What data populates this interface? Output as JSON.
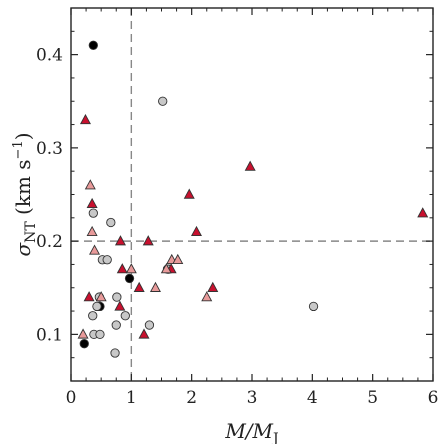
{
  "chart_data": {
    "type": "scatter",
    "xlabel": "M/MJ",
    "ylabel": "σNT (km s−1)",
    "xlim": [
      0,
      6
    ],
    "ylim": [
      0.05,
      0.45
    ],
    "xticks": [
      "0",
      "1",
      "2",
      "3",
      "4",
      "5",
      "6"
    ],
    "yticks": [
      "0.1",
      "0.2",
      "0.3",
      "0.4"
    ],
    "reference_lines": {
      "x": 1,
      "y": 0.2,
      "style": "dashed",
      "color": "#888888"
    },
    "series": [
      {
        "marker": "circle",
        "color": "#000000",
        "points": [
          [
            0.37,
            0.41
          ],
          [
            0.97,
            0.16
          ],
          [
            0.48,
            0.13
          ],
          [
            1.62,
            0.17
          ],
          [
            0.22,
            0.09
          ]
        ]
      },
      {
        "marker": "circle",
        "color": "#c8c8c8",
        "points": [
          [
            1.52,
            0.35
          ],
          [
            0.37,
            0.23
          ],
          [
            0.66,
            0.22
          ],
          [
            0.52,
            0.18
          ],
          [
            0.6,
            0.18
          ],
          [
            0.47,
            0.14
          ],
          [
            0.76,
            0.14
          ],
          [
            0.43,
            0.13
          ],
          [
            0.36,
            0.12
          ],
          [
            0.9,
            0.12
          ],
          [
            0.75,
            0.11
          ],
          [
            1.3,
            0.11
          ],
          [
            0.38,
            0.1
          ],
          [
            0.48,
            0.1
          ],
          [
            0.73,
            0.08
          ],
          [
            4.02,
            0.13
          ],
          [
            1.6,
            0.17
          ]
        ]
      },
      {
        "marker": "triangle",
        "color": "#c8102e",
        "points": [
          [
            0.24,
            0.33
          ],
          [
            0.35,
            0.24
          ],
          [
            0.82,
            0.2
          ],
          [
            1.28,
            0.2
          ],
          [
            1.96,
            0.25
          ],
          [
            2.97,
            0.28
          ],
          [
            2.08,
            0.21
          ],
          [
            5.83,
            0.23
          ],
          [
            0.85,
            0.17
          ],
          [
            1.66,
            0.17
          ],
          [
            1.13,
            0.15
          ],
          [
            2.35,
            0.15
          ],
          [
            0.3,
            0.14
          ],
          [
            0.81,
            0.13
          ],
          [
            1.21,
            0.1
          ]
        ]
      },
      {
        "marker": "triangle",
        "color": "#e89a9a",
        "points": [
          [
            0.32,
            0.26
          ],
          [
            0.35,
            0.21
          ],
          [
            0.39,
            0.19
          ],
          [
            1.67,
            0.18
          ],
          [
            1.77,
            0.18
          ],
          [
            1.58,
            0.17
          ],
          [
            1.0,
            0.17
          ],
          [
            2.25,
            0.14
          ],
          [
            0.5,
            0.14
          ],
          [
            1.4,
            0.15
          ],
          [
            0.2,
            0.1
          ]
        ]
      }
    ]
  }
}
